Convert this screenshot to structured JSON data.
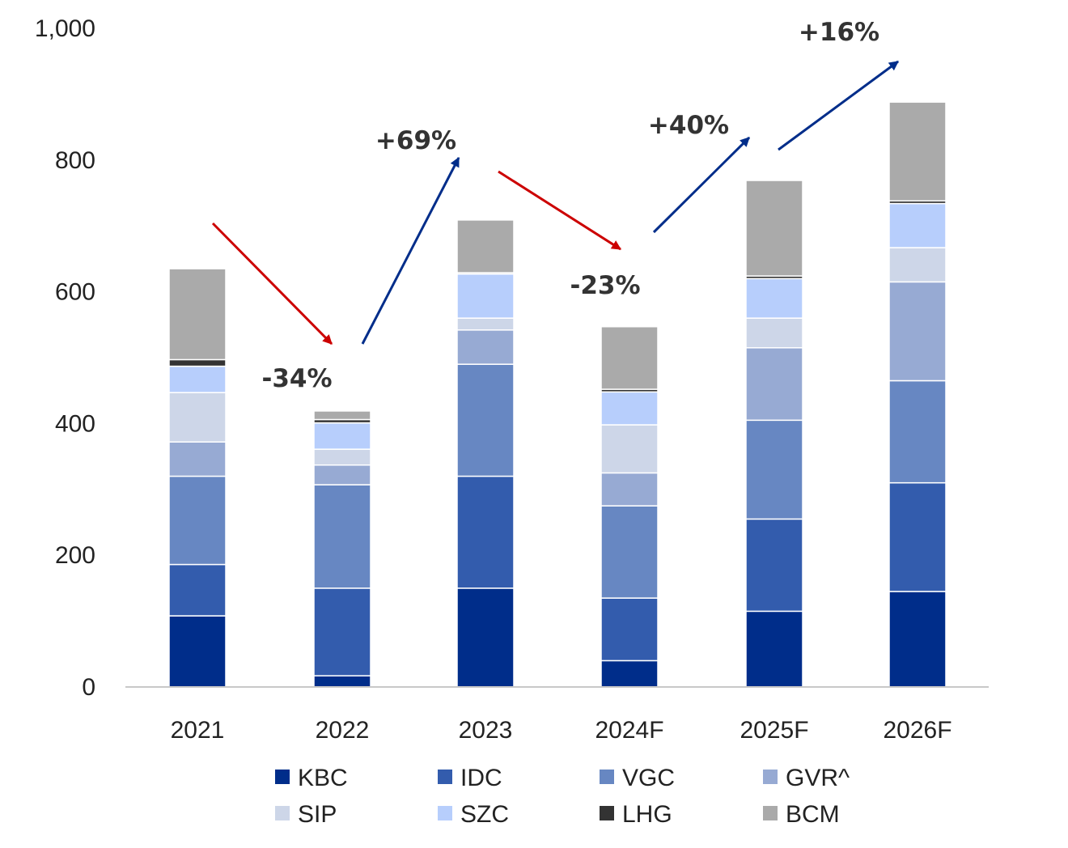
{
  "chart_data": {
    "type": "bar",
    "stacked": true,
    "categories": [
      "2021",
      "2022",
      "2023",
      "2024F",
      "2025F",
      "2026F"
    ],
    "ylim": [
      0,
      1000
    ],
    "yticks": [
      0,
      200,
      400,
      600,
      800,
      1000
    ],
    "ytick_labels": [
      "0",
      "200",
      "400",
      "600",
      "800",
      "1,000"
    ],
    "grid": false,
    "legend_position": "bottom",
    "series": [
      {
        "name": "KBC",
        "color": "#002d8a",
        "values": [
          108,
          17,
          150,
          40,
          115,
          145
        ]
      },
      {
        "name": "IDC",
        "color": "#335cad",
        "values": [
          78,
          133,
          170,
          95,
          140,
          165
        ]
      },
      {
        "name": "VGC",
        "color": "#6787c2",
        "values": [
          134,
          157,
          170,
          140,
          150,
          155
        ]
      },
      {
        "name": "GVR^",
        "color": "#97aad3",
        "values": [
          52,
          30,
          52,
          50,
          110,
          150
        ]
      },
      {
        "name": "SIP",
        "color": "#cdd6e8",
        "values": [
          75,
          24,
          18,
          73,
          45,
          52
        ]
      },
      {
        "name": "SZC",
        "color": "#b7cefc",
        "values": [
          40,
          40,
          67,
          50,
          60,
          67
        ]
      },
      {
        "name": "LHG",
        "color": "#333333",
        "values": [
          10,
          5,
          2,
          4,
          4,
          4
        ]
      },
      {
        "name": "BCM",
        "color": "#aaaaaa",
        "values": [
          138,
          13,
          80,
          95,
          145,
          150
        ]
      }
    ],
    "annotations": [
      {
        "text": "-34%",
        "direction": "down",
        "color": "#cc0000"
      },
      {
        "text": "+69%",
        "direction": "up",
        "color": "#002d8a"
      },
      {
        "text": "-23%",
        "direction": "down",
        "color": "#cc0000"
      },
      {
        "text": "+40%",
        "direction": "up",
        "color": "#002d8a"
      },
      {
        "text": "+16%",
        "direction": "up",
        "color": "#002d8a"
      }
    ]
  }
}
